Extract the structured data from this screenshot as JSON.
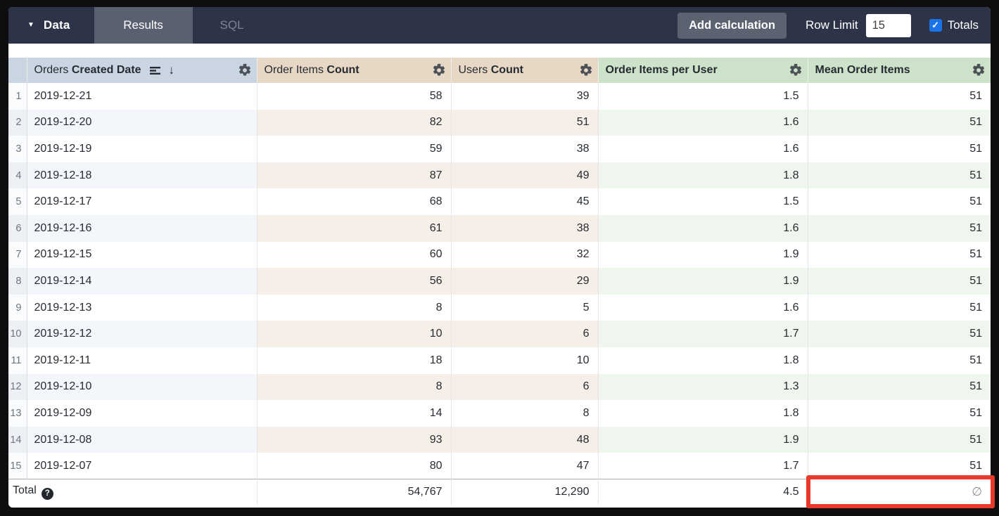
{
  "topbar": {
    "data_label": "Data",
    "tabs": [
      {
        "label": "Results",
        "active": true
      },
      {
        "label": "SQL",
        "active": false
      }
    ],
    "add_calculation_label": "Add calculation",
    "row_limit_label": "Row Limit",
    "row_limit_value": "15",
    "totals_label": "Totals",
    "totals_checked": true
  },
  "table": {
    "columns": [
      {
        "prefix": "Orders ",
        "bold": "Created Date",
        "type": "dimension",
        "sorted_desc": true
      },
      {
        "prefix": "Order Items ",
        "bold": "Count",
        "type": "measure"
      },
      {
        "prefix": "Users ",
        "bold": "Count",
        "type": "measure"
      },
      {
        "prefix": "",
        "bold": "Order Items per User",
        "type": "table_calculation"
      },
      {
        "prefix": "",
        "bold": "Mean Order Items",
        "type": "table_calculation"
      }
    ],
    "rows": [
      {
        "n": "1",
        "date": "2019-12-21",
        "order_items": "58",
        "users": "39",
        "per_user": "1.5",
        "mean": "51"
      },
      {
        "n": "2",
        "date": "2019-12-20",
        "order_items": "82",
        "users": "51",
        "per_user": "1.6",
        "mean": "51"
      },
      {
        "n": "3",
        "date": "2019-12-19",
        "order_items": "59",
        "users": "38",
        "per_user": "1.6",
        "mean": "51"
      },
      {
        "n": "4",
        "date": "2019-12-18",
        "order_items": "87",
        "users": "49",
        "per_user": "1.8",
        "mean": "51"
      },
      {
        "n": "5",
        "date": "2019-12-17",
        "order_items": "68",
        "users": "45",
        "per_user": "1.5",
        "mean": "51"
      },
      {
        "n": "6",
        "date": "2019-12-16",
        "order_items": "61",
        "users": "38",
        "per_user": "1.6",
        "mean": "51"
      },
      {
        "n": "7",
        "date": "2019-12-15",
        "order_items": "60",
        "users": "32",
        "per_user": "1.9",
        "mean": "51"
      },
      {
        "n": "8",
        "date": "2019-12-14",
        "order_items": "56",
        "users": "29",
        "per_user": "1.9",
        "mean": "51"
      },
      {
        "n": "9",
        "date": "2019-12-13",
        "order_items": "8",
        "users": "5",
        "per_user": "1.6",
        "mean": "51"
      },
      {
        "n": "10",
        "date": "2019-12-12",
        "order_items": "10",
        "users": "6",
        "per_user": "1.7",
        "mean": "51"
      },
      {
        "n": "11",
        "date": "2019-12-11",
        "order_items": "18",
        "users": "10",
        "per_user": "1.8",
        "mean": "51"
      },
      {
        "n": "12",
        "date": "2019-12-10",
        "order_items": "8",
        "users": "6",
        "per_user": "1.3",
        "mean": "51"
      },
      {
        "n": "13",
        "date": "2019-12-09",
        "order_items": "14",
        "users": "8",
        "per_user": "1.8",
        "mean": "51"
      },
      {
        "n": "14",
        "date": "2019-12-08",
        "order_items": "93",
        "users": "48",
        "per_user": "1.9",
        "mean": "51"
      },
      {
        "n": "15",
        "date": "2019-12-07",
        "order_items": "80",
        "users": "47",
        "per_user": "1.7",
        "mean": "51"
      }
    ],
    "total": {
      "label": "Total",
      "help_glyph": "?",
      "order_items": "54,767",
      "users": "12,290",
      "per_user": "4.5",
      "mean": "∅"
    }
  },
  "icons": {
    "caret": "▼",
    "sort_desc_arrow": "↓",
    "checkbox_check": "✓"
  },
  "colors": {
    "topbar_bg": "#2d3448",
    "active_tab_bg": "#596070",
    "dimension_header_bg": "#c9d6e2",
    "measure_header_bg": "#e7d7c5",
    "calc_header_bg": "#cde3c9",
    "checkbox_blue": "#1a73e8",
    "annotation_red": "#e8392b"
  }
}
